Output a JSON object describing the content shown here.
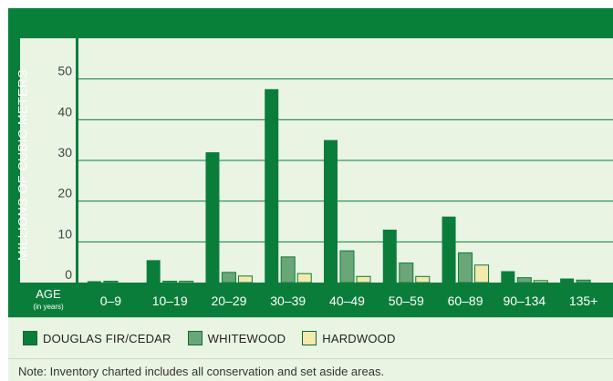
{
  "colors": {
    "header": "#08803a",
    "douglas": "#0b7d3b",
    "whitewood": "#6aa678",
    "hardwood": "#f3e9ad",
    "panel": "#e9f4e3",
    "axis": "#0b7d3b"
  },
  "legend": {
    "items": [
      {
        "label": "DOUGLAS FIR/CEDAR"
      },
      {
        "label": "WHITEWOOD"
      },
      {
        "label": "HARDWOOD"
      }
    ]
  },
  "note": "Note: Inventory charted includes all conservation and set aside areas.",
  "chart_data": {
    "type": "bar",
    "title": "",
    "ylabel": "MILLIONS OF CUBIC METERS",
    "xlabel": "AGE",
    "xlabel_sub": "(in years)",
    "ylim": [
      0,
      60
    ],
    "yticks": [
      0,
      10,
      20,
      30,
      40,
      50
    ],
    "grid": true,
    "legend_position": "bottom",
    "categories": [
      "0–9",
      "10–19",
      "20–29",
      "30–39",
      "40–49",
      "50–59",
      "60–89",
      "90–134",
      "135+"
    ],
    "series": [
      {
        "name": "DOUGLAS FIR/CEDAR",
        "values": [
          0.2,
          5.5,
          32,
          47.5,
          35,
          13,
          16.2,
          2.8,
          1
        ]
      },
      {
        "name": "WHITEWOOD",
        "values": [
          0.1,
          0.3,
          2.5,
          6.3,
          7.8,
          4.8,
          7.3,
          1.2,
          0.6
        ]
      },
      {
        "name": "HARDWOOD",
        "values": [
          0,
          0.1,
          1.6,
          2.2,
          1.5,
          1.5,
          4.3,
          0.5,
          0
        ]
      }
    ]
  }
}
